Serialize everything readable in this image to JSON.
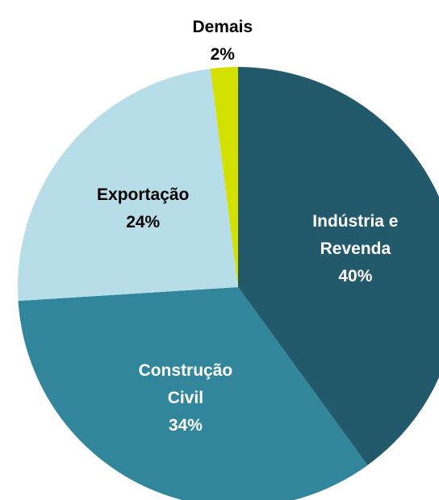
{
  "chart_data": {
    "type": "pie",
    "categories": [
      "Indústria e Revenda",
      "Construção Civil",
      "Exportação",
      "Demais"
    ],
    "values": [
      40,
      34,
      24,
      2
    ],
    "value_labels": [
      "40%",
      "34%",
      "24%",
      "2%"
    ],
    "colors": [
      "#235a6b",
      "#31869b",
      "#b7dde8",
      "#d4e000"
    ]
  }
}
